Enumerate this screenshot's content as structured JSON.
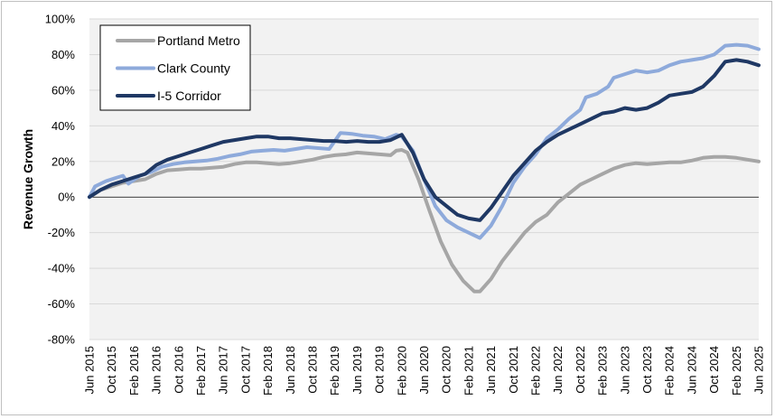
{
  "chart_data": {
    "type": "line",
    "title": "",
    "xlabel": "",
    "ylabel": "Revenue Growth",
    "ylim": [
      -80,
      100
    ],
    "y_ticks": [
      100,
      80,
      60,
      40,
      20,
      0,
      -20,
      -40,
      -60,
      -80
    ],
    "y_tick_labels": [
      "100%",
      "80%",
      "60%",
      "40%",
      "20%",
      "0%",
      "-20%",
      "-40%",
      "-60%",
      "-80%"
    ],
    "x_range": [
      "2015-06",
      "2025-06"
    ],
    "x_tick_labels": [
      "Jun 2015",
      "Oct 2015",
      "Feb 2016",
      "Jun 2016",
      "Oct 2016",
      "Feb 2017",
      "Jun 2017",
      "Oct 2017",
      "Feb 2018",
      "Jun 2018",
      "Oct 2018",
      "Feb 2019",
      "Jun 2019",
      "Oct 2019",
      "Feb 2020",
      "Jun 2020",
      "Oct 2020",
      "Feb 2021",
      "Jun 2021",
      "Oct 2021",
      "Feb 2022",
      "Jun 2022",
      "Oct 2022",
      "Feb 2023",
      "Jun 2023",
      "Oct 2023",
      "Feb 2024",
      "Jun 2024",
      "Oct 2024",
      "Feb 2025",
      "Jun 2025"
    ],
    "grid": "horizontal",
    "legend_position": "top-left",
    "plot_background": "#f2f2f2",
    "series": [
      {
        "name": "Portland Metro",
        "color": "#a6a6a6",
        "points": [
          [
            "2015-06",
            0
          ],
          [
            "2015-08",
            4
          ],
          [
            "2015-10",
            6
          ],
          [
            "2015-12",
            8
          ],
          [
            "2016-02",
            9
          ],
          [
            "2016-04",
            10
          ],
          [
            "2016-06",
            13
          ],
          [
            "2016-08",
            15
          ],
          [
            "2016-10",
            15.5
          ],
          [
            "2016-12",
            16
          ],
          [
            "2017-02",
            16
          ],
          [
            "2017-04",
            16.5
          ],
          [
            "2017-06",
            17
          ],
          [
            "2017-08",
            18.5
          ],
          [
            "2017-10",
            19.5
          ],
          [
            "2017-12",
            19.5
          ],
          [
            "2018-02",
            19
          ],
          [
            "2018-04",
            18.5
          ],
          [
            "2018-06",
            19
          ],
          [
            "2018-08",
            20
          ],
          [
            "2018-10",
            21
          ],
          [
            "2018-12",
            22.5
          ],
          [
            "2019-02",
            23.5
          ],
          [
            "2019-04",
            24
          ],
          [
            "2019-06",
            25
          ],
          [
            "2019-08",
            24.5
          ],
          [
            "2019-10",
            24
          ],
          [
            "2019-12",
            23.5
          ],
          [
            "2020-01",
            26
          ],
          [
            "2020-02",
            26.5
          ],
          [
            "2020-03",
            25
          ],
          [
            "2020-05",
            10
          ],
          [
            "2020-07",
            -8
          ],
          [
            "2020-09",
            -25
          ],
          [
            "2020-11",
            -38
          ],
          [
            "2021-01",
            -47
          ],
          [
            "2021-03",
            -53
          ],
          [
            "2021-04",
            -53
          ],
          [
            "2021-06",
            -46
          ],
          [
            "2021-08",
            -36
          ],
          [
            "2021-10",
            -28
          ],
          [
            "2021-12",
            -20
          ],
          [
            "2022-02",
            -14
          ],
          [
            "2022-04",
            -10
          ],
          [
            "2022-06",
            -3
          ],
          [
            "2022-08",
            2
          ],
          [
            "2022-10",
            7
          ],
          [
            "2022-12",
            10
          ],
          [
            "2023-02",
            13
          ],
          [
            "2023-04",
            16
          ],
          [
            "2023-06",
            18
          ],
          [
            "2023-08",
            19
          ],
          [
            "2023-10",
            18.5
          ],
          [
            "2023-12",
            19
          ],
          [
            "2024-02",
            19.5
          ],
          [
            "2024-04",
            19.5
          ],
          [
            "2024-06",
            20.5
          ],
          [
            "2024-08",
            22
          ],
          [
            "2024-10",
            22.5
          ],
          [
            "2024-12",
            22.5
          ],
          [
            "2025-02",
            22
          ],
          [
            "2025-04",
            21
          ],
          [
            "2025-06",
            20
          ]
        ]
      },
      {
        "name": "Clark County",
        "color": "#8eaadb",
        "points": [
          [
            "2015-06",
            0
          ],
          [
            "2015-07",
            6
          ],
          [
            "2015-09",
            9
          ],
          [
            "2015-11",
            11
          ],
          [
            "2015-12",
            12
          ],
          [
            "2016-01",
            7.5
          ],
          [
            "2016-03",
            12
          ],
          [
            "2016-05",
            14
          ],
          [
            "2016-07",
            17
          ],
          [
            "2016-09",
            18.5
          ],
          [
            "2016-11",
            19.5
          ],
          [
            "2017-01",
            20
          ],
          [
            "2017-03",
            20.5
          ],
          [
            "2017-05",
            21.5
          ],
          [
            "2017-07",
            23
          ],
          [
            "2017-09",
            24
          ],
          [
            "2017-11",
            25.5
          ],
          [
            "2018-01",
            26
          ],
          [
            "2018-03",
            26.5
          ],
          [
            "2018-05",
            26
          ],
          [
            "2018-07",
            27
          ],
          [
            "2018-09",
            28
          ],
          [
            "2018-11",
            27.5
          ],
          [
            "2019-01",
            27
          ],
          [
            "2019-03",
            36
          ],
          [
            "2019-05",
            35.5
          ],
          [
            "2019-07",
            34.5
          ],
          [
            "2019-09",
            34
          ],
          [
            "2019-11",
            32.5
          ],
          [
            "2020-01",
            35
          ],
          [
            "2020-02",
            34
          ],
          [
            "2020-04",
            26
          ],
          [
            "2020-06",
            10
          ],
          [
            "2020-08",
            -5
          ],
          [
            "2020-10",
            -13
          ],
          [
            "2020-12",
            -17
          ],
          [
            "2021-02",
            -20
          ],
          [
            "2021-04",
            -23
          ],
          [
            "2021-06",
            -16
          ],
          [
            "2021-08",
            -5
          ],
          [
            "2021-10",
            8
          ],
          [
            "2021-12",
            17
          ],
          [
            "2022-02",
            24
          ],
          [
            "2022-04",
            33
          ],
          [
            "2022-06",
            38
          ],
          [
            "2022-08",
            44
          ],
          [
            "2022-10",
            49
          ],
          [
            "2022-11",
            56
          ],
          [
            "2023-01",
            58
          ],
          [
            "2023-03",
            62
          ],
          [
            "2023-04",
            67
          ],
          [
            "2023-06",
            69
          ],
          [
            "2023-08",
            71
          ],
          [
            "2023-10",
            70
          ],
          [
            "2023-12",
            71
          ],
          [
            "2024-02",
            74
          ],
          [
            "2024-04",
            76
          ],
          [
            "2024-06",
            77
          ],
          [
            "2024-08",
            78
          ],
          [
            "2024-10",
            80
          ],
          [
            "2024-12",
            85
          ],
          [
            "2025-02",
            85.5
          ],
          [
            "2025-04",
            85
          ],
          [
            "2025-06",
            83
          ]
        ]
      },
      {
        "name": "I-5 Corridor",
        "color": "#1f3864",
        "points": [
          [
            "2015-06",
            0
          ],
          [
            "2015-08",
            4
          ],
          [
            "2015-10",
            7
          ],
          [
            "2015-12",
            9
          ],
          [
            "2016-02",
            11
          ],
          [
            "2016-04",
            13
          ],
          [
            "2016-06",
            18
          ],
          [
            "2016-08",
            21
          ],
          [
            "2016-10",
            23
          ],
          [
            "2016-12",
            25
          ],
          [
            "2017-02",
            27
          ],
          [
            "2017-04",
            29
          ],
          [
            "2017-06",
            31
          ],
          [
            "2017-08",
            32
          ],
          [
            "2017-10",
            33
          ],
          [
            "2017-12",
            34
          ],
          [
            "2018-02",
            34
          ],
          [
            "2018-04",
            33
          ],
          [
            "2018-06",
            33
          ],
          [
            "2018-08",
            32.5
          ],
          [
            "2018-10",
            32
          ],
          [
            "2018-12",
            31.5
          ],
          [
            "2019-02",
            31.5
          ],
          [
            "2019-04",
            31
          ],
          [
            "2019-06",
            31.5
          ],
          [
            "2019-08",
            31
          ],
          [
            "2019-10",
            31
          ],
          [
            "2019-12",
            32
          ],
          [
            "2020-02",
            35
          ],
          [
            "2020-04",
            25
          ],
          [
            "2020-06",
            10
          ],
          [
            "2020-08",
            0
          ],
          [
            "2020-10",
            -5
          ],
          [
            "2020-12",
            -10
          ],
          [
            "2021-02",
            -12
          ],
          [
            "2021-04",
            -13
          ],
          [
            "2021-06",
            -6
          ],
          [
            "2021-08",
            3
          ],
          [
            "2021-10",
            12
          ],
          [
            "2021-12",
            19
          ],
          [
            "2022-02",
            26
          ],
          [
            "2022-04",
            31
          ],
          [
            "2022-06",
            35
          ],
          [
            "2022-08",
            38
          ],
          [
            "2022-10",
            41
          ],
          [
            "2022-12",
            44
          ],
          [
            "2023-02",
            47
          ],
          [
            "2023-04",
            48
          ],
          [
            "2023-06",
            50
          ],
          [
            "2023-08",
            49
          ],
          [
            "2023-10",
            50
          ],
          [
            "2023-12",
            53
          ],
          [
            "2024-02",
            57
          ],
          [
            "2024-04",
            58
          ],
          [
            "2024-06",
            59
          ],
          [
            "2024-08",
            62
          ],
          [
            "2024-10",
            68
          ],
          [
            "2024-12",
            76
          ],
          [
            "2025-02",
            77
          ],
          [
            "2025-04",
            76
          ],
          [
            "2025-06",
            74
          ]
        ]
      }
    ]
  }
}
